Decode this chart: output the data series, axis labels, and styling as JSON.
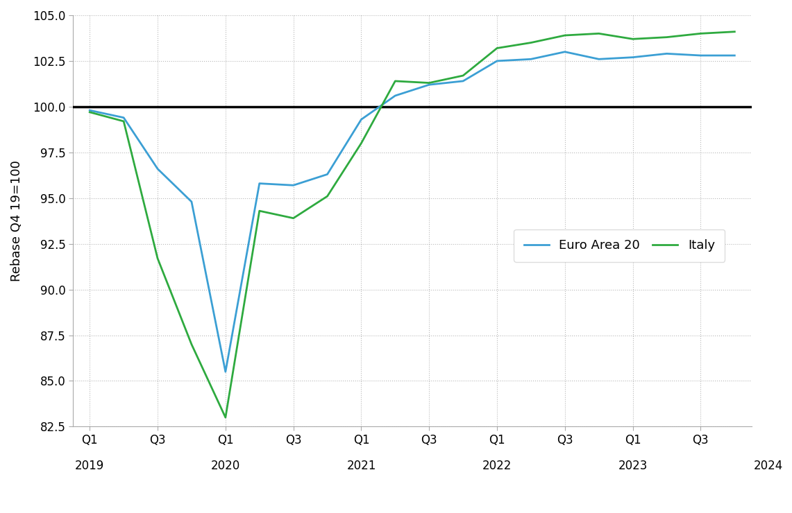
{
  "ylabel": "Rebase Q4 19=100",
  "ylim": [
    82.5,
    105.0
  ],
  "yticks": [
    82.5,
    85.0,
    87.5,
    90.0,
    92.5,
    95.0,
    97.5,
    100.0,
    102.5,
    105.0
  ],
  "background_color": "#ffffff",
  "hline_y": 100.0,
  "hline_color": "#000000",
  "hline_lw": 2.5,
  "euro_area": {
    "label": "Euro Area 20",
    "color": "#3B9FD4",
    "lw": 2.0
  },
  "italy": {
    "label": "Italy",
    "color": "#2EAA3F",
    "lw": 2.0
  },
  "ea_x": [
    0,
    1,
    2,
    3,
    4,
    5,
    6,
    7,
    8,
    9,
    10,
    11,
    12,
    13,
    14,
    15,
    16,
    17,
    18,
    19
  ],
  "ea_y": [
    99.8,
    99.4,
    96.6,
    94.8,
    85.5,
    95.8,
    95.7,
    96.3,
    99.3,
    100.6,
    101.2,
    101.4,
    102.5,
    102.6,
    103.0,
    102.6,
    102.7,
    102.9,
    102.8,
    102.8
  ],
  "it_x": [
    0,
    1,
    2,
    3,
    4,
    5,
    6,
    7,
    8,
    9,
    10,
    11,
    12,
    13,
    14,
    15,
    16,
    17,
    18,
    19
  ],
  "it_y": [
    99.7,
    99.2,
    91.7,
    87.0,
    83.0,
    94.3,
    93.9,
    95.1,
    98.0,
    101.4,
    101.3,
    101.7,
    103.2,
    103.5,
    103.9,
    104.0,
    103.7,
    103.8,
    104.0,
    104.1
  ],
  "xtick_positions": [
    0,
    2,
    4,
    6,
    8,
    10,
    12,
    14,
    16,
    18
  ],
  "xtick_labels": [
    "Q1",
    "Q3",
    "Q1",
    "Q3",
    "Q1",
    "Q3",
    "Q1",
    "Q3",
    "Q1",
    "Q3"
  ],
  "year_positions": [
    0,
    4,
    8,
    12,
    16,
    20
  ],
  "year_labels": [
    "2019",
    "2020",
    "2021",
    "2022",
    "2023",
    "2024"
  ],
  "xlim": [
    -0.5,
    19.5
  ],
  "grid_color": "#888888",
  "grid_alpha": 0.6,
  "legend_ncol": 2,
  "legend_fontsize": 13
}
